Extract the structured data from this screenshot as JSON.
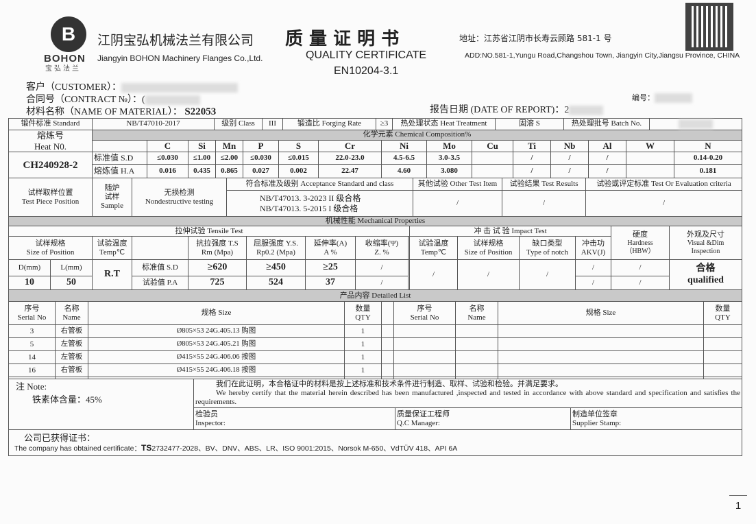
{
  "header": {
    "logo_letter": "B",
    "logo_text": "BOHON",
    "logo_cn": "宝弘法兰",
    "company_cn": "江阴宝弘机械法兰有限公司",
    "company_en": "Jiangyin BOHON Machinery Flanges Co.,Ltd.",
    "title_cn": "质 量 证 明 书",
    "title_en": "QUALITY   CERTIFICATE",
    "standard": "EN10204-3.1",
    "address_cn": "地址：江苏省江阴市长寿云顾路 581-1 号",
    "address_en": "ADD:NO.581-1,Yungu Road,Changshou Town, Jiangyin City,Jiangsu Province, CHINA"
  },
  "info": {
    "customer_label": "客户（CUSTOMER）：",
    "contract_label": "合同号（CONTRACT №）：(",
    "material_label": "材料名称（NAME OF MATERIAL）：",
    "material": "S22053",
    "number_label": "编号：",
    "date_label": "报告日期 (DATE OF REPORT)：2"
  },
  "std_row": {
    "standard_label": "锻件标准 Standard",
    "standard": "NB/T47010-2017",
    "class_label": "级别 Class",
    "class": "III",
    "forging_label": "锻造比 Forging Rate",
    "forging": "≥3",
    "heat_label": "热处理状态 Heat Treatment",
    "heat": "固溶 S",
    "batch_label": "热处理批号 Batch No."
  },
  "chem": {
    "title": "化学元素 Chemical Composition%",
    "heat_label_cn": "熔炼号",
    "heat_label_en": "Heat N0.",
    "heat_no": "CH240928-2",
    "sd_label": "标准值 S.D",
    "ha_label": "熔炼值 H.A",
    "elements": [
      "C",
      "Si",
      "Mn",
      "P",
      "S",
      "Cr",
      "Ni",
      "Mo",
      "Cu",
      "Ti",
      "Nb",
      "Al",
      "W",
      "N"
    ],
    "sd": [
      "≤0.030",
      "≤1.00",
      "≤2.00",
      "≤0.030",
      "≤0.015",
      "22.0-23.0",
      "4.5-6.5",
      "3.0-3.5",
      "",
      "/",
      "/",
      "/",
      "",
      "0.14-0.20"
    ],
    "ha": [
      "0.016",
      "0.435",
      "0.865",
      "0.027",
      "0.002",
      "22.47",
      "4.60",
      "3.080",
      "",
      "/",
      "/",
      "/",
      "",
      "0.181"
    ]
  },
  "accept": {
    "pos_cn": "试样取样位置",
    "pos_en": "Test Piece Position",
    "sample_cn1": "随炉",
    "sample_cn2": "试样",
    "sample_en": "Sample",
    "ndt_cn": "无损检测",
    "ndt_en": "Nondestructive testing",
    "std_label": "符合标准及级别 Acceptance Standard and class",
    "std1": "NB/T47013. 3-2023 II 级合格",
    "std2": "NB/T47013. 5-2015 I 级合格",
    "other_label": "其他试验 Other Test Item",
    "other": "/",
    "result_label": "试验结果 Test Results",
    "result": "/",
    "criteria_label": "试验或评定标准 Test Or Evaluation criteria",
    "criteria": "/"
  },
  "mech": {
    "title": "机械性能  Mechanical Properties",
    "tensile": "拉伸试验  Tensile Test",
    "size_cn": "试样规格",
    "size_en": "Size of Position",
    "temp_cn": "试验温度",
    "temp_en": "Temp℃",
    "ts_cn": "抗拉强度 T.S",
    "ts_en": "Rm (Mpa)",
    "ys_cn": "屈服强度 Y.S.",
    "ys_en": "Rp0.2 (Mpa)",
    "el_cn": "延伸率(A)",
    "el_en": "A %",
    "ra_cn": "收缩率(Ψ)",
    "ra_en": "Z. %",
    "d_label": "D(mm)",
    "l_label": "L(mm)",
    "d": "10",
    "l": "50",
    "temp": "R.T",
    "sd_label": "标准值 S.D",
    "pa_label": "试验值 P.A",
    "sd": [
      "≥620",
      "≥450",
      "≥25",
      "/"
    ],
    "pa": [
      "725",
      "524",
      "37",
      "/"
    ],
    "impact": "冲   击   试   验  Impact Test",
    "itemp_cn": "试验温度",
    "itemp_en": "Temp℃",
    "isize_cn": "试样规格",
    "isize_en": "Size of Position",
    "notch_cn": "缺口类型",
    "notch_en": "Type of notch",
    "akv_cn": "冲击功",
    "akv_en": "AKV(J)",
    "itemp": "/",
    "isize": "/",
    "notch": "/",
    "akv": [
      "/",
      "/"
    ],
    "hard_cn": "硬度",
    "hard_en": "Hardness",
    "hard_unit": "（HBW）",
    "hard": [
      "/",
      "/"
    ],
    "vis_cn": "外观及尺寸",
    "vis_en1": "Visual &Dim",
    "vis_en2": "Inspection",
    "vis_cn_val": "合格",
    "vis_en_val": "qualified"
  },
  "list": {
    "title": "产品内容  Detailed List",
    "serial_cn": "序号",
    "serial_en": "Serial No",
    "name_cn": "名称",
    "name_en": "Name",
    "size_label": "规格 Size",
    "qty_cn": "数量",
    "qty_en": "QTY",
    "rows": [
      {
        "no": "3",
        "name": "右管板",
        "size": "Ø805×53  24G.405.13 购图",
        "qty": "1"
      },
      {
        "no": "5",
        "name": "左管板",
        "size": "Ø805×53  24G.405.21 购图",
        "qty": "1"
      },
      {
        "no": "14",
        "name": "左管板",
        "size": "Ø415×55  24G.406.06 按图",
        "qty": "1"
      },
      {
        "no": "16",
        "name": "右管板",
        "size": "Ø415×55  24G.406.18 按图",
        "qty": "1"
      }
    ]
  },
  "note": {
    "label": "注 Note:",
    "text": "铁素体含量：45%",
    "cert_cn": "我们在此证明，本合格证中的材料是按上述标准和技术条件进行制造、取样、试验和检验。并满足要求。",
    "cert_en": "We hereby certify that the material herein described has been manufactured ,inspected and tested in accordance with above standard and specification and satisfies the requirements.",
    "inspector_cn": "检验员",
    "inspector_en": "Inspector:",
    "qc_cn": "质量保证工程师",
    "qc_en": "Q.C Manager:",
    "supplier_cn": "制造单位签章",
    "supplier_en": "Supplier Stamp:"
  },
  "certs": {
    "label_cn": "公司已获得证书：",
    "label_en": "The company has obtained certificate：",
    "ts": "TS",
    "list": "2732477-2028、BV、DNV、ABS、LR、ISO 9001:2015、Norsok M-650、VdTÜV 418、API 6A"
  },
  "page": "1"
}
